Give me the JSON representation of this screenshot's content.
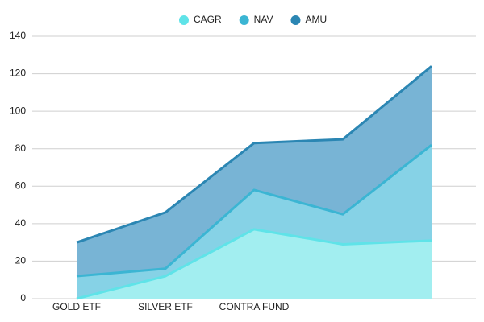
{
  "chart_data": {
    "type": "area",
    "categories": [
      "GOLD ETF",
      "SILVER ETF",
      "CONTRA FUND",
      null,
      null
    ],
    "series": [
      {
        "name": "CAGR",
        "color": "#5fe3e8",
        "fill": "#a2eef0",
        "values": [
          0,
          12,
          37,
          29,
          31
        ]
      },
      {
        "name": "NAV",
        "color": "#3bb5d3",
        "fill": "#86d2e6",
        "values": [
          12,
          16,
          58,
          45,
          82
        ]
      },
      {
        "name": "AMU",
        "color": "#2b86b3",
        "fill": "#78b4d5",
        "values": [
          30,
          46,
          83,
          85,
          124
        ]
      }
    ],
    "ylim": [
      0,
      140
    ],
    "yticks": [
      0,
      20,
      40,
      60,
      80,
      100,
      120,
      140
    ],
    "grid": true
  }
}
